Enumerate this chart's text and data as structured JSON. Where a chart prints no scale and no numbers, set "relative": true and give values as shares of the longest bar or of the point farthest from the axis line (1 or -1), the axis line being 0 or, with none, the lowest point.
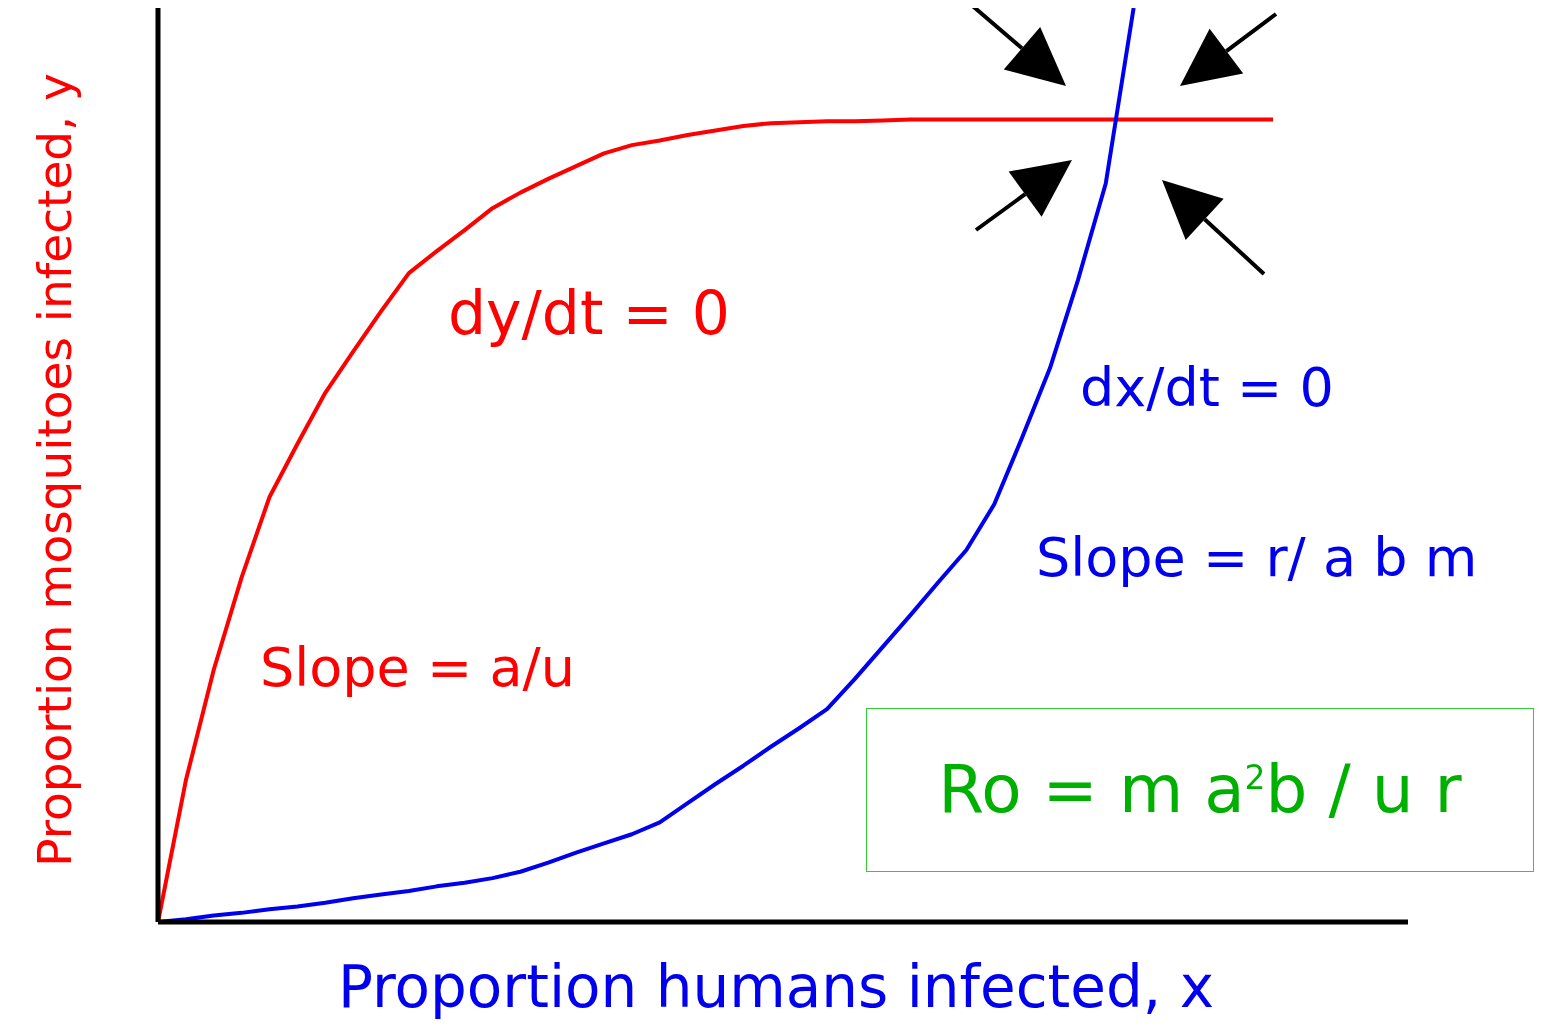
{
  "chart_data": {
    "type": "line",
    "relative": true,
    "xlabel": "Proportion humans infected, x",
    "ylabel": "Proportion mosquitoes infected, y",
    "grid": false,
    "legend": false,
    "marker": "none",
    "line_style": "solid",
    "annotations": [
      "dy/dt = 0",
      "Slope = a/u",
      "dx/dt = 0",
      "Slope = r/ a b m",
      "Ro = m a$^{2}$b / u r"
    ],
    "categories": [
      null,
      null,
      null,
      null,
      null,
      null,
      null,
      null,
      null,
      null,
      null,
      null,
      null,
      null,
      null,
      null,
      null,
      null,
      null,
      null,
      null,
      null,
      null,
      null,
      null,
      null,
      null,
      null,
      null,
      null,
      null,
      null,
      null,
      null,
      null,
      null,
      null,
      null,
      null,
      null,
      null
    ],
    "series": [
      {
        "color": "#ff0000",
        "values": [
          0,
          0.155,
          0.276,
          0.377,
          0.465,
          0.523,
          0.579,
          0.624,
          0.668,
          0.71,
          0.734,
          0.757,
          0.781,
          0.798,
          0.813,
          0.827,
          0.841,
          0.85,
          0.855,
          0.861,
          0.866,
          0.871,
          0.874,
          0.875,
          0.876,
          0.876,
          0.877,
          0.878,
          0.878,
          0.878,
          0.878,
          0.878,
          0.878,
          0.878,
          0.878,
          0.878,
          0.878,
          0.878,
          0.878,
          0.878,
          0.878
        ]
      },
      {
        "color": "#0000ee",
        "values": [
          0,
          0.003,
          0.007,
          0.01,
          0.014,
          0.017,
          0.021,
          0.026,
          0.03,
          0.034,
          0.039,
          0.043,
          0.048,
          0.055,
          0.065,
          0.076,
          0.086,
          0.096,
          0.109,
          0.13,
          0.151,
          0.171,
          0.192,
          0.212,
          0.233,
          0.266,
          0.301,
          0.336,
          0.372,
          0.407,
          0.457,
          0.53,
          0.606,
          0.702,
          0.808,
          1,
          null,
          null,
          null,
          null,
          null
        ]
      }
    ]
  }
}
